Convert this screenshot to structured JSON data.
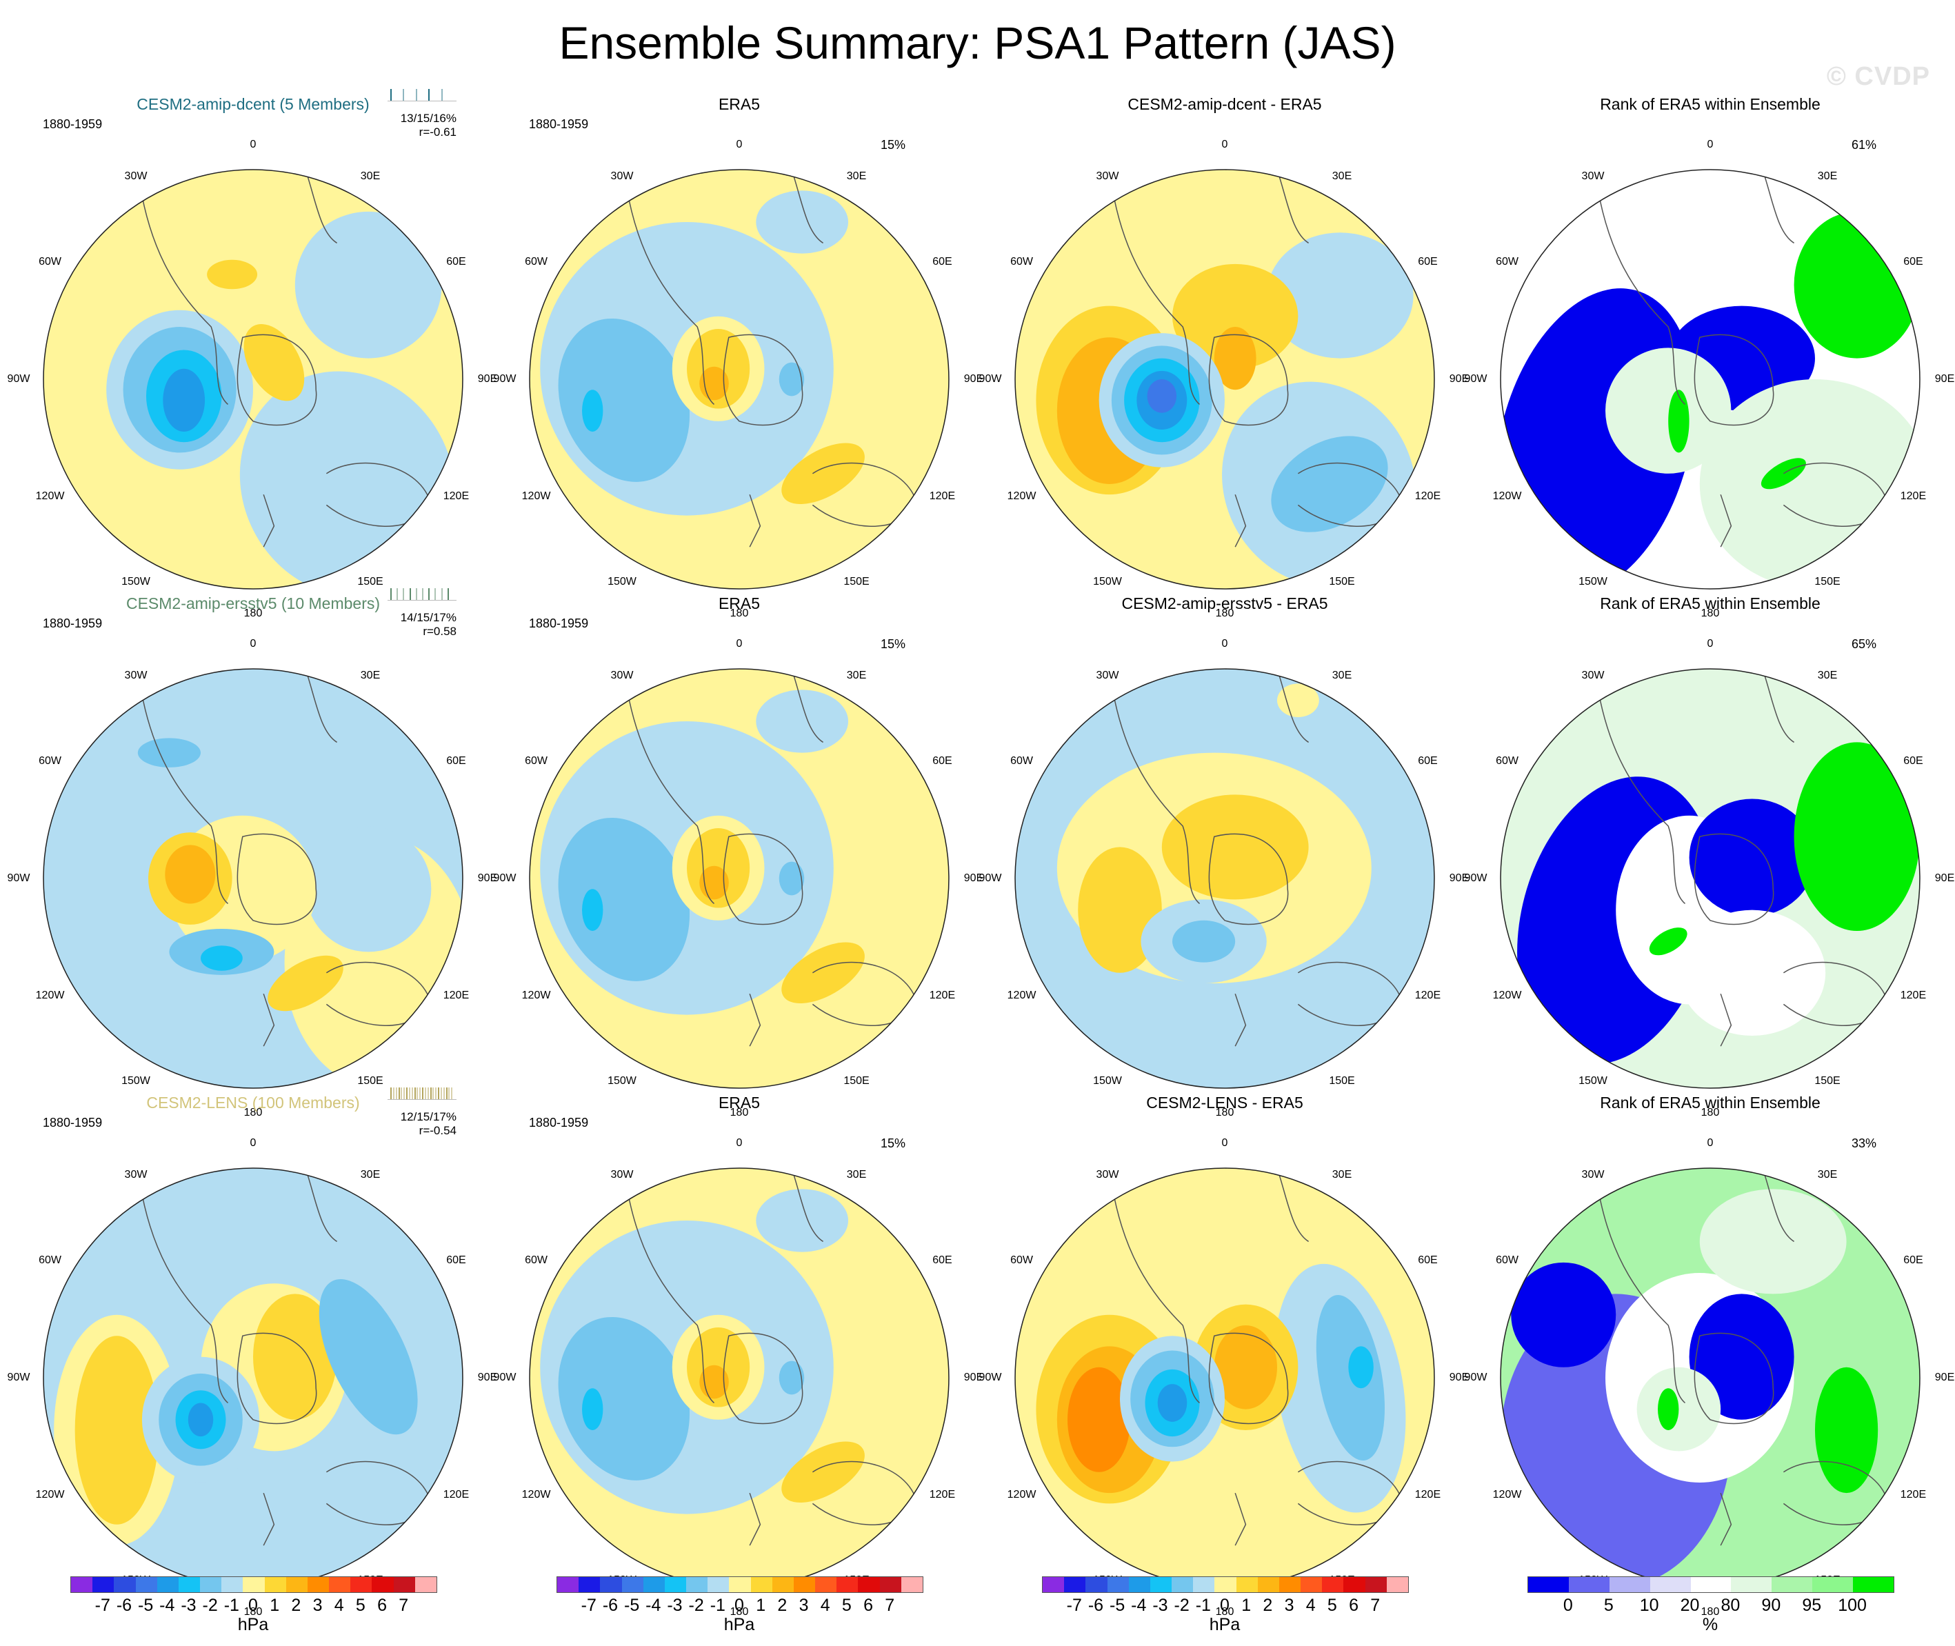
{
  "title": "Ensemble Summary: PSA1 Pattern (JAS)",
  "watermark": "© CVDP",
  "lon_labels": [
    "0",
    "30E",
    "60E",
    "90E",
    "120E",
    "150E",
    "180",
    "150W",
    "120W",
    "90W",
    "60W",
    "30W"
  ],
  "rows": [
    {
      "ensemble": {
        "title": "CESM2-amip-dcent (5 Members)",
        "title_color": "#1f6e82",
        "period": "1880-1959",
        "stats_line1": "13/15/16%",
        "stats_line2": "r=-0.61",
        "tick_color": "#1f6e82"
      },
      "obs": {
        "title": "ERA5",
        "period": "1880-1959",
        "pct": "15%"
      },
      "diff": {
        "title": "CESM2-amip-dcent - ERA5"
      },
      "rank": {
        "title": "Rank of ERA5 within Ensemble",
        "pct": "61%"
      }
    },
    {
      "ensemble": {
        "title": "CESM2-amip-ersstv5 (10 Members)",
        "title_color": "#5b8a6a",
        "period": "1880-1959",
        "stats_line1": "14/15/17%",
        "stats_line2": "r=0.58",
        "tick_color": "#5b8a6a"
      },
      "obs": {
        "title": "ERA5",
        "period": "1880-1959",
        "pct": "15%"
      },
      "diff": {
        "title": "CESM2-amip-ersstv5 - ERA5"
      },
      "rank": {
        "title": "Rank of ERA5 within Ensemble",
        "pct": "65%"
      }
    },
    {
      "ensemble": {
        "title": "CESM2-LENS (100 Members)",
        "title_color": "#d2c47a",
        "period": "1880-1959",
        "stats_line1": "12/15/17%",
        "stats_line2": "r=-0.54",
        "tick_color": "#b3a45c"
      },
      "obs": {
        "title": "ERA5",
        "period": "1880-1959",
        "pct": "15%"
      },
      "diff": {
        "title": "CESM2-LENS - ERA5"
      },
      "rank": {
        "title": "Rank of ERA5 within Ensemble",
        "pct": "33%"
      }
    }
  ],
  "colorbar_hpa": {
    "labels": [
      "-7",
      "-6",
      "-5",
      "-4",
      "-3",
      "-2",
      "-1",
      "0",
      "1",
      "2",
      "3",
      "4",
      "5",
      "6",
      "7"
    ],
    "unit": "hPa",
    "colors": [
      "#8a2be2",
      "#1a1ae6",
      "#2d4de0",
      "#3d78e8",
      "#1e9be8",
      "#14c3f5",
      "#74c6ee",
      "#b3ddf2",
      "#fff59a",
      "#fdd835",
      "#fdb614",
      "#ff8c00",
      "#ff5a1e",
      "#f52a1a",
      "#e00a0a",
      "#c8141e",
      "#ffb0b0"
    ]
  },
  "colorbar_rank": {
    "labels": [
      "0",
      "5",
      "10",
      "20",
      "80",
      "90",
      "95",
      "100"
    ],
    "unit": "%",
    "colors": [
      "#0000ee",
      "#6666f0",
      "#b3b3f5",
      "#dedef8",
      "#ffffff",
      "#e2f8e2",
      "#aaf5aa",
      "#8cf78c",
      "#00ee00"
    ]
  },
  "field_colors": {
    "neg1": "#b3ddf2",
    "neg2": "#74c6ee",
    "neg3": "#14c3f5",
    "neg4": "#1e9be8",
    "neg5": "#3d78e8",
    "neg6": "#2d4de0",
    "pos1": "#fff59a",
    "pos2": "#fdd835",
    "pos3": "#fdb614",
    "pos4": "#ff8c00",
    "pos5": "#ff5a1e",
    "rank_blue": "#0000ee",
    "rank_midblue": "#6666f0",
    "rank_lightblue": "#dedef8",
    "rank_white": "#ffffff",
    "rank_palegreen": "#e2f8e2",
    "rank_midgreen": "#aaf5aa",
    "rank_green": "#00ee00"
  }
}
